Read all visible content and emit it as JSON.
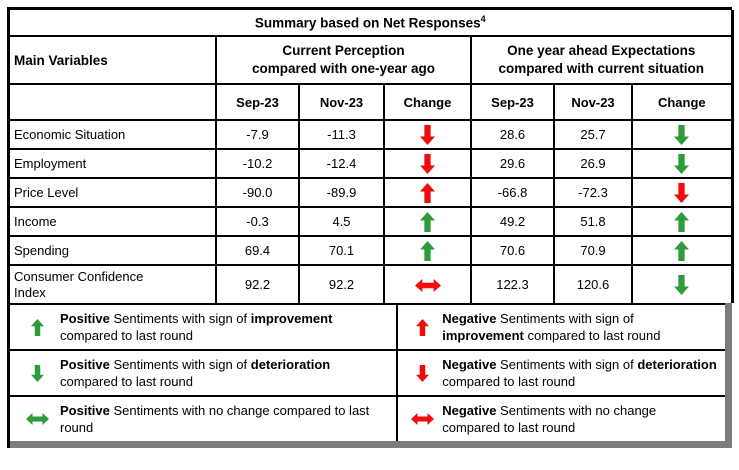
{
  "colors": {
    "red": "#f20b0b",
    "green": "#2d9c3a",
    "border": "#000000",
    "shadow": "#7c7c7c"
  },
  "title": {
    "text": "Summary based on Net Responses",
    "sup": "4"
  },
  "table": {
    "main_col_header": "Main Variables",
    "groups": [
      {
        "line1": "Current Perception",
        "line2": "compared with one-year ago"
      },
      {
        "line1": "One year ahead Expectations",
        "line2": "compared with current situation"
      }
    ],
    "subheaders": [
      "Sep-23",
      "Nov-23",
      "Change",
      "Sep-23",
      "Nov-23",
      "Change"
    ],
    "rows": [
      {
        "name": "Economic Situation",
        "cp_sep": "-7.9",
        "cp_nov": "-11.3",
        "cp_change": "red-down",
        "ex_sep": "28.6",
        "ex_nov": "25.7",
        "ex_change": "green-down"
      },
      {
        "name": "Employment",
        "cp_sep": "-10.2",
        "cp_nov": "-12.4",
        "cp_change": "red-down",
        "ex_sep": "29.6",
        "ex_nov": "26.9",
        "ex_change": "green-down"
      },
      {
        "name": "Price Level",
        "cp_sep": "-90.0",
        "cp_nov": "-89.9",
        "cp_change": "red-up",
        "ex_sep": "-66.8",
        "ex_nov": "-72.3",
        "ex_change": "red-down"
      },
      {
        "name": "Income",
        "cp_sep": "-0.3",
        "cp_nov": "4.5",
        "cp_change": "green-up",
        "ex_sep": "49.2",
        "ex_nov": "51.8",
        "ex_change": "green-up"
      },
      {
        "name": "Spending",
        "cp_sep": "69.4",
        "cp_nov": "70.1",
        "cp_change": "green-up",
        "ex_sep": "70.6",
        "ex_nov": "70.9",
        "ex_change": "green-up"
      },
      {
        "name": "Consumer Confidence\nIndex",
        "cp_sep": "92.2",
        "cp_nov": "92.2",
        "cp_change": "red-both",
        "ex_sep": "122.3",
        "ex_nov": "120.6",
        "ex_change": "green-down"
      }
    ]
  },
  "legend": {
    "rows": [
      {
        "left": {
          "arrow": "green-up",
          "seg1": "Positive",
          "seg2": " Sentiments with sign of ",
          "seg3": "improvement",
          "seg4": " compared to last round"
        },
        "right": {
          "arrow": "red-up",
          "seg1": "Negative",
          "seg2": " Sentiments with sign of ",
          "seg3": "improvement",
          "seg4": " compared to last round"
        }
      },
      {
        "left": {
          "arrow": "green-down",
          "seg1": "Positive",
          "seg2": " Sentiments with sign of ",
          "seg3": "deterioration",
          "seg4": " compared to last round"
        },
        "right": {
          "arrow": "red-down",
          "seg1": "Negative",
          "seg2": " Sentiments with sign of ",
          "seg3": "deterioration",
          "seg4": " compared to last round"
        }
      },
      {
        "left": {
          "arrow": "green-both",
          "seg1": "Positive",
          "seg2": " Sentiments with no change compared to last round",
          "seg3": "",
          "seg4": ""
        },
        "right": {
          "arrow": "red-both",
          "seg1": "Negative",
          "seg2": " Sentiments with no change compared to last round",
          "seg3": "",
          "seg4": ""
        }
      }
    ]
  }
}
